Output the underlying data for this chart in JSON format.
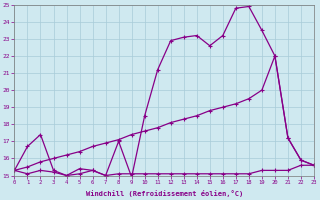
{
  "xlabel": "Windchill (Refroidissement éolien,°C)",
  "background_color": "#cfe9f0",
  "line_color": "#880088",
  "xmin": 0,
  "xmax": 23,
  "ymin": 15,
  "ymax": 25,
  "series1_x": [
    0,
    1,
    2,
    3,
    4,
    5,
    6,
    7,
    8,
    9,
    10,
    11,
    12,
    13,
    14,
    15,
    16,
    17,
    18,
    19,
    20,
    21,
    22,
    23
  ],
  "series1_y": [
    15.3,
    16.7,
    17.4,
    15.3,
    15.0,
    15.4,
    15.3,
    15.0,
    17.0,
    14.9,
    18.5,
    21.2,
    22.9,
    23.1,
    23.2,
    22.6,
    23.2,
    24.8,
    24.9,
    23.5,
    22.0,
    17.2,
    15.9,
    15.6
  ],
  "series2_x": [
    0,
    1,
    2,
    3,
    4,
    5,
    6,
    7,
    8,
    9,
    10,
    11,
    12,
    13,
    14,
    15,
    16,
    17,
    18,
    19,
    20,
    21,
    22,
    23
  ],
  "series2_y": [
    15.3,
    15.5,
    15.8,
    16.0,
    16.2,
    16.4,
    16.7,
    16.9,
    17.1,
    17.4,
    17.6,
    17.8,
    18.1,
    18.3,
    18.5,
    18.8,
    19.0,
    19.2,
    19.5,
    20.0,
    22.0,
    17.2,
    15.9,
    15.6
  ],
  "series3_x": [
    0,
    1,
    2,
    3,
    4,
    5,
    6,
    7,
    8,
    9,
    10,
    11,
    12,
    13,
    14,
    15,
    16,
    17,
    18,
    19,
    20,
    21,
    22,
    23
  ],
  "series3_y": [
    15.3,
    15.1,
    15.3,
    15.2,
    15.0,
    15.1,
    15.3,
    15.0,
    15.1,
    15.1,
    15.1,
    15.1,
    15.1,
    15.1,
    15.1,
    15.1,
    15.1,
    15.1,
    15.1,
    15.3,
    15.3,
    15.3,
    15.6,
    15.6
  ]
}
